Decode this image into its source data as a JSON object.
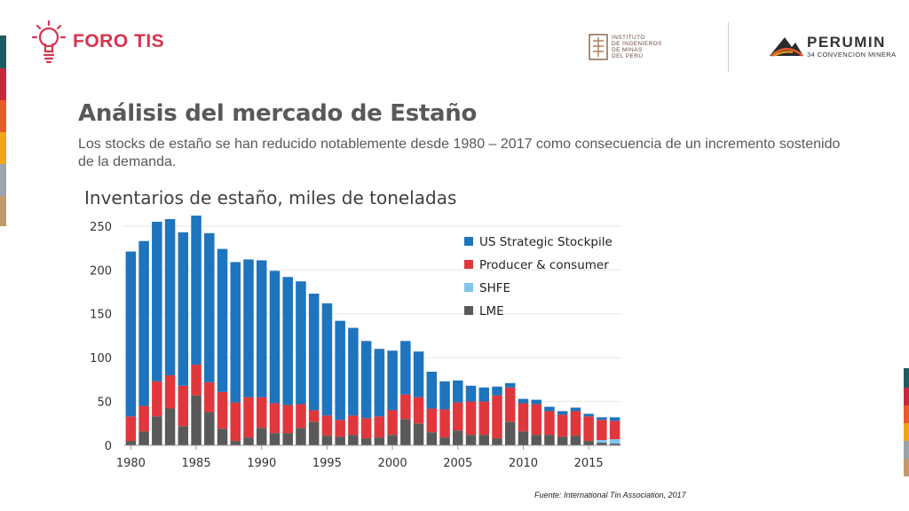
{
  "header": {
    "brand": "FORO TIS",
    "institute_lines": [
      "INSTITUTO",
      "DE INGENIEROS",
      "DE MINAS",
      "DEL PERÚ"
    ],
    "perumin_name": "PERUMIN",
    "perumin_sub": "34 CONVENCION MINERA"
  },
  "slide": {
    "title": "Análisis del mercado de Estaño",
    "subtitle": "Los stocks de estaño se han reducido notablemente desde 1980 – 2017 como consecuencia de un incremento sostenido de la demanda.",
    "chart_heading": "Inventarios de estaño, miles de toneladas",
    "source": "Fuente: International Tin Association, 2017"
  },
  "colors": {
    "accent": "#d9334e",
    "text_gray": "#58595b",
    "stripes": [
      "#1d5c63",
      "#c8283d",
      "#e85a2a",
      "#f2a51a",
      "#9ba4ad",
      "#c49a6c"
    ]
  },
  "chart_data": {
    "type": "bar",
    "stacked": true,
    "x": [
      1980,
      1981,
      1982,
      1983,
      1984,
      1985,
      1986,
      1987,
      1988,
      1989,
      1990,
      1991,
      1992,
      1993,
      1994,
      1995,
      1996,
      1997,
      1998,
      1999,
      2000,
      2001,
      2002,
      2003,
      2004,
      2005,
      2006,
      2007,
      2008,
      2009,
      2010,
      2011,
      2012,
      2013,
      2014,
      2015,
      2016,
      2017
    ],
    "xticks": [
      1980,
      1985,
      1990,
      1995,
      2000,
      2005,
      2010,
      2015
    ],
    "ylim": [
      0,
      260
    ],
    "yticks": [
      0,
      50,
      100,
      150,
      200,
      250
    ],
    "grid": true,
    "legend_position": "top-right",
    "series": [
      {
        "name": "LME",
        "color": "#595959",
        "values": [
          5,
          16,
          33,
          42,
          22,
          57,
          38,
          19,
          5,
          9,
          20,
          14,
          14,
          20,
          27,
          11,
          10,
          12,
          8,
          9,
          12,
          30,
          25,
          15,
          9,
          17,
          12,
          12,
          8,
          27,
          16,
          12,
          12,
          10,
          11,
          5,
          3,
          2
        ]
      },
      {
        "name": "SHFE",
        "color": "#7fc6ea",
        "values": [
          0,
          0,
          0,
          0,
          0,
          0,
          0,
          0,
          0,
          0,
          0,
          0,
          0,
          0,
          0,
          0,
          0,
          0,
          0,
          0,
          0,
          0,
          0,
          0,
          0,
          0,
          0,
          0,
          0,
          0,
          0,
          0,
          0,
          0,
          0,
          0,
          3,
          5
        ]
      },
      {
        "name": "Producer & consumer",
        "color": "#e0373d",
        "values": [
          28,
          29,
          40,
          38,
          46,
          35,
          34,
          42,
          44,
          46,
          35,
          34,
          32,
          27,
          13,
          23,
          19,
          22,
          23,
          24,
          28,
          28,
          30,
          27,
          32,
          32,
          38,
          38,
          49,
          39,
          32,
          35,
          27,
          25,
          28,
          28,
          23,
          21
        ]
      },
      {
        "name": "US Strategic Stockpile",
        "color": "#1e74bd",
        "values": [
          188,
          188,
          182,
          178,
          175,
          170,
          170,
          163,
          160,
          157,
          156,
          151,
          146,
          140,
          133,
          128,
          113,
          100,
          88,
          77,
          68,
          61,
          52,
          42,
          32,
          25,
          18,
          16,
          10,
          5,
          5,
          5,
          5,
          4,
          4,
          3,
          3,
          4
        ]
      }
    ],
    "legend_order": [
      "US Strategic Stockpile",
      "Producer & consumer",
      "SHFE",
      "LME"
    ]
  }
}
